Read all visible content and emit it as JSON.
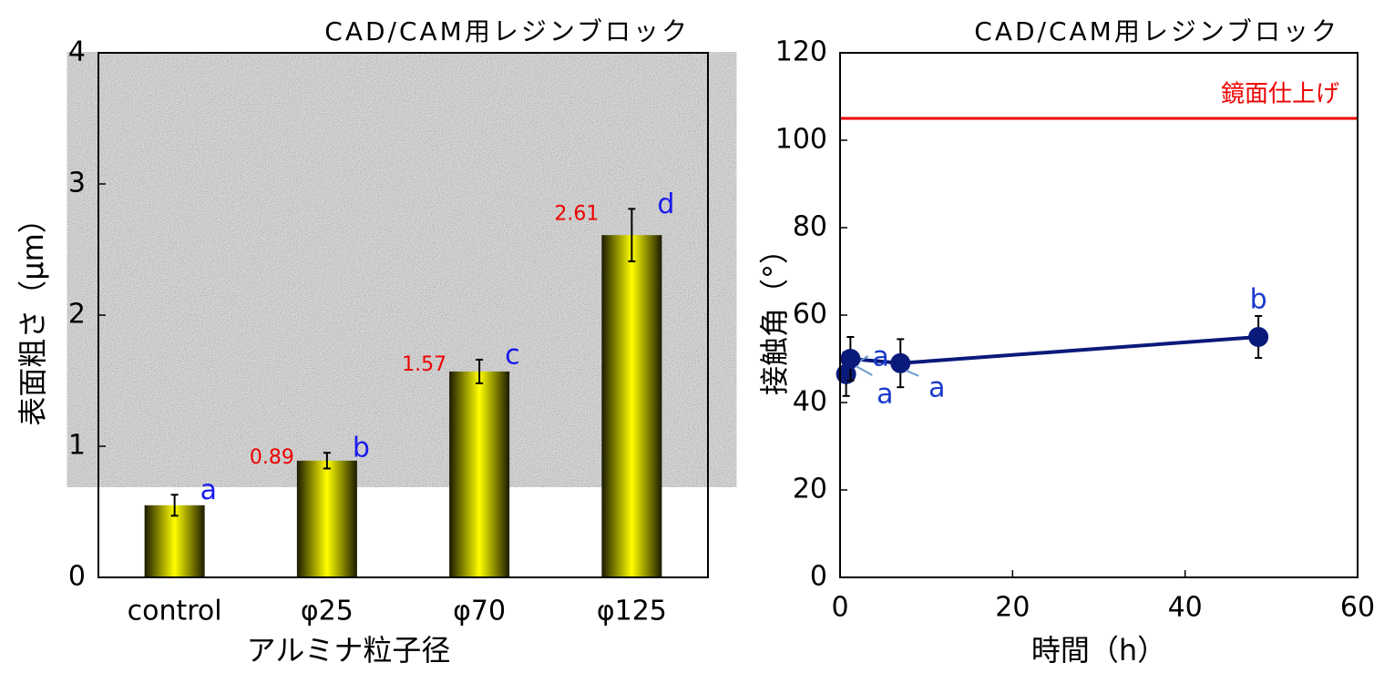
{
  "chart_data": [
    {
      "type": "bar",
      "title": "CAD/CAM用レジンブロック",
      "ylabel": "表面粗さ（μm）",
      "xlabel": "アルミナ粒子径",
      "categories": [
        "control",
        "φ25",
        "φ70",
        "φ125"
      ],
      "values": [
        0.55,
        0.89,
        1.57,
        2.61
      ],
      "errors": [
        0.08,
        0.06,
        0.09,
        0.2
      ],
      "value_labels": [
        null,
        "0.89",
        "1.57",
        "2.61"
      ],
      "letters": [
        "a",
        "b",
        "c",
        "d"
      ],
      "color": "#f2f200",
      "ylim": [
        0,
        4
      ],
      "yticks": [
        0,
        1,
        2,
        3,
        4
      ]
    },
    {
      "type": "line",
      "title": "CAD/CAM用レジンブロック",
      "ylabel": "接触角（°）",
      "xlabel": "時間（h）",
      "x": [
        0.7,
        1.2,
        7,
        48.5
      ],
      "values": [
        46.5,
        50,
        49,
        55
      ],
      "errors": [
        5,
        5,
        5.5,
        4.8
      ],
      "letters": [
        "a",
        "a",
        "a",
        "b"
      ],
      "color": "#0a1a7a",
      "reference": {
        "value": 105,
        "label": "鏡面仕上げ",
        "color": "#ee0000"
      },
      "xlim": [
        0,
        60
      ],
      "xticks": [
        0,
        20,
        40,
        60
      ],
      "ylim": [
        0,
        120
      ],
      "yticks": [
        0,
        20,
        40,
        60,
        80,
        100,
        120
      ]
    }
  ]
}
